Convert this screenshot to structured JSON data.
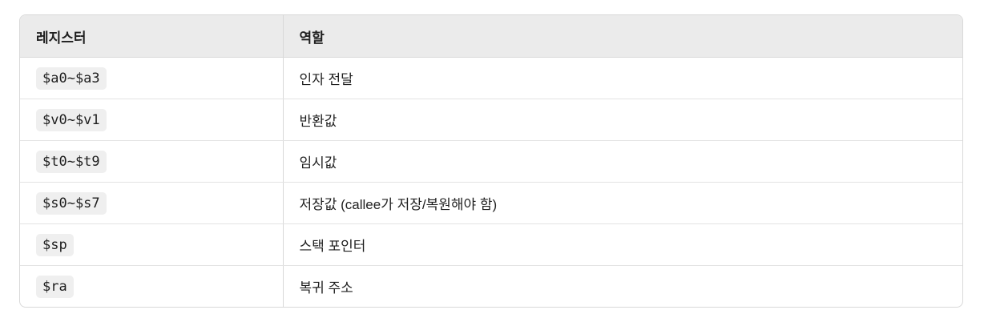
{
  "table": {
    "headers": [
      "레지스터",
      "역할"
    ],
    "rows": [
      {
        "register": "$a0~$a3",
        "role": "인자 전달"
      },
      {
        "register": "$v0~$v1",
        "role": "반환값"
      },
      {
        "register": "$t0~$t9",
        "role": "임시값"
      },
      {
        "register": "$s0~$s7",
        "role": "저장값 (callee가 저장/복원해야 함)"
      },
      {
        "register": "$sp",
        "role": "스택 포인터"
      },
      {
        "register": "$ra",
        "role": "복귀 주소"
      }
    ]
  }
}
